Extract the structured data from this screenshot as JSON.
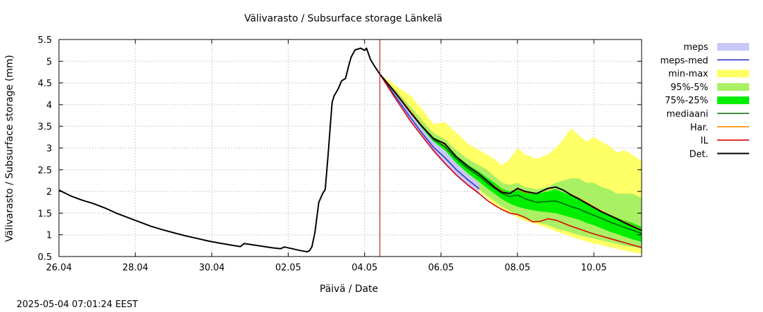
{
  "chart_data": {
    "type": "area",
    "title": "Välivarasto / Subsurface storage  Länkelä",
    "xlabel": "Päivä / Date",
    "ylabel": "Välivarasto / Subsurface storage (mm)",
    "timestamp": "2025-05-04 07:01:24 EEST",
    "xlim": [
      0,
      15.25
    ],
    "ylim": [
      0.5,
      5.5
    ],
    "forecast_start": 8.4,
    "grid": true,
    "x_ticks": [
      {
        "x": 0,
        "label": "26.04"
      },
      {
        "x": 2,
        "label": "28.04"
      },
      {
        "x": 4,
        "label": "30.04"
      },
      {
        "x": 6,
        "label": "02.05"
      },
      {
        "x": 8,
        "label": "04.05"
      },
      {
        "x": 10,
        "label": "06.05"
      },
      {
        "x": 12,
        "label": "08.05"
      },
      {
        "x": 14,
        "label": "10.05"
      }
    ],
    "y_ticks": [
      {
        "y": 0.5,
        "label": "0.5"
      },
      {
        "y": 1,
        "label": "1"
      },
      {
        "y": 1.5,
        "label": "1.5"
      },
      {
        "y": 2,
        "label": "2"
      },
      {
        "y": 2.5,
        "label": "2.5"
      },
      {
        "y": 3,
        "label": "3"
      },
      {
        "y": 3.5,
        "label": "3.5"
      },
      {
        "y": 4,
        "label": "4"
      },
      {
        "y": 4.5,
        "label": "4.5"
      },
      {
        "y": 5,
        "label": "5"
      },
      {
        "y": 5.5,
        "label": "5.5"
      }
    ],
    "legend": [
      {
        "label": "meps",
        "kind": "box",
        "color": "#c8c8fa"
      },
      {
        "label": "meps-med",
        "kind": "line",
        "color": "#3232c8"
      },
      {
        "label": "min-max",
        "kind": "box",
        "color": "#ffff66"
      },
      {
        "label": "95%-5%",
        "kind": "box",
        "color": "#aaf064"
      },
      {
        "label": "75%-25%",
        "kind": "box",
        "color": "#00ee00"
      },
      {
        "label": "mediaani",
        "kind": "line",
        "color": "#006400"
      },
      {
        "label": "Har.",
        "kind": "line",
        "color": "#ff8c00"
      },
      {
        "label": "IL",
        "kind": "line",
        "color": "#e00000"
      },
      {
        "label": "Det.",
        "kind": "line",
        "color": "#000000"
      }
    ],
    "series": [
      {
        "name": "min-max",
        "kind": "band",
        "color": "#ffff66",
        "x": [
          8.4,
          8.8,
          9.2,
          9.5,
          9.8,
          10.1,
          10.4,
          10.7,
          11.0,
          11.2,
          11.4,
          11.6,
          11.8,
          12.0,
          12.2,
          12.5,
          12.8,
          13.0,
          13.2,
          13.4,
          13.6,
          13.8,
          14.0,
          14.2,
          14.4,
          14.6,
          14.8,
          15.0,
          15.25
        ],
        "upper": [
          4.7,
          4.45,
          4.2,
          3.9,
          3.55,
          3.6,
          3.35,
          3.1,
          2.95,
          2.85,
          2.75,
          2.6,
          2.75,
          3.0,
          2.85,
          2.75,
          2.85,
          3.0,
          3.2,
          3.45,
          3.3,
          3.15,
          3.25,
          3.15,
          3.05,
          2.9,
          2.95,
          2.85,
          2.7
        ],
        "lower": [
          4.7,
          4.2,
          3.7,
          3.35,
          3.05,
          2.75,
          2.45,
          2.2,
          2.0,
          1.85,
          1.7,
          1.6,
          1.5,
          1.4,
          1.32,
          1.25,
          1.15,
          1.08,
          1.02,
          0.96,
          0.9,
          0.85,
          0.8,
          0.76,
          0.72,
          0.68,
          0.64,
          0.6,
          0.56
        ]
      },
      {
        "name": "95%-5%",
        "kind": "band",
        "color": "#aaf064",
        "x": [
          8.4,
          8.8,
          9.2,
          9.5,
          9.8,
          10.1,
          10.4,
          10.7,
          11.0,
          11.2,
          11.4,
          11.6,
          11.8,
          12.0,
          12.2,
          12.5,
          12.8,
          13.0,
          13.2,
          13.4,
          13.6,
          13.8,
          14.0,
          14.2,
          14.4,
          14.6,
          14.8,
          15.0,
          15.25
        ],
        "upper": [
          4.7,
          4.35,
          3.95,
          3.65,
          3.35,
          3.2,
          2.95,
          2.75,
          2.6,
          2.5,
          2.35,
          2.2,
          2.15,
          2.2,
          2.1,
          2.05,
          2.1,
          2.2,
          2.25,
          2.3,
          2.3,
          2.2,
          2.2,
          2.1,
          2.05,
          1.95,
          1.95,
          1.95,
          1.85
        ],
        "lower": [
          4.7,
          4.25,
          3.75,
          3.4,
          3.1,
          2.8,
          2.5,
          2.25,
          2.05,
          1.9,
          1.78,
          1.65,
          1.55,
          1.45,
          1.38,
          1.3,
          1.22,
          1.15,
          1.1,
          1.05,
          1.0,
          0.95,
          0.91,
          0.87,
          0.83,
          0.79,
          0.75,
          0.72,
          0.68
        ]
      },
      {
        "name": "75%-25%",
        "kind": "band",
        "color": "#00ee00",
        "x": [
          8.4,
          8.8,
          9.2,
          9.5,
          9.8,
          10.1,
          10.4,
          10.7,
          11.0,
          11.2,
          11.4,
          11.6,
          11.8,
          12.0,
          12.2,
          12.5,
          12.8,
          13.0,
          13.2,
          13.4,
          13.6,
          13.8,
          14.0,
          14.2,
          14.4,
          14.6,
          14.8,
          15.0,
          15.25
        ],
        "upper": [
          4.7,
          4.3,
          3.85,
          3.52,
          3.25,
          3.1,
          2.82,
          2.62,
          2.45,
          2.32,
          2.2,
          2.06,
          2.0,
          2.05,
          1.98,
          1.95,
          2.0,
          2.05,
          1.98,
          1.9,
          1.85,
          1.75,
          1.65,
          1.55,
          1.48,
          1.4,
          1.33,
          1.28,
          1.18
        ],
        "lower": [
          4.7,
          4.25,
          3.78,
          3.45,
          3.15,
          2.95,
          2.65,
          2.42,
          2.22,
          2.08,
          1.95,
          1.82,
          1.72,
          1.65,
          1.6,
          1.55,
          1.52,
          1.5,
          1.45,
          1.4,
          1.35,
          1.28,
          1.22,
          1.15,
          1.08,
          1.02,
          0.96,
          0.9,
          0.84
        ]
      },
      {
        "name": "meps",
        "kind": "band",
        "color": "#c8c8fa",
        "x": [
          8.4,
          8.8,
          9.2,
          9.5,
          9.8,
          10.1,
          10.4,
          10.7,
          11.0
        ],
        "upper": [
          4.7,
          4.25,
          3.8,
          3.45,
          3.15,
          2.95,
          2.65,
          2.4,
          2.2
        ],
        "lower": [
          4.7,
          4.15,
          3.6,
          3.25,
          2.9,
          2.62,
          2.35,
          2.12,
          1.92
        ]
      },
      {
        "name": "meps-med",
        "kind": "line",
        "color": "#3232c8",
        "x": [
          8.4,
          8.8,
          9.2,
          9.5,
          9.8,
          10.1,
          10.4,
          10.7,
          11.0
        ],
        "y": [
          4.7,
          4.2,
          3.7,
          3.35,
          3.02,
          2.78,
          2.5,
          2.27,
          2.06
        ]
      },
      {
        "name": "mediaani",
        "kind": "line",
        "color": "#006400",
        "x": [
          8.4,
          8.8,
          9.2,
          9.5,
          9.8,
          10.1,
          10.4,
          10.7,
          11.0,
          11.2,
          11.4,
          11.6,
          11.8,
          12.0,
          12.2,
          12.5,
          12.8,
          13.0,
          13.2,
          13.4,
          13.6,
          13.8,
          14.0,
          14.2,
          14.4,
          14.6,
          14.8,
          15.0,
          15.25
        ],
        "y": [
          4.7,
          4.28,
          3.82,
          3.5,
          3.2,
          3.03,
          2.75,
          2.53,
          2.35,
          2.2,
          2.07,
          1.95,
          1.88,
          1.92,
          1.83,
          1.75,
          1.77,
          1.78,
          1.72,
          1.65,
          1.6,
          1.52,
          1.45,
          1.38,
          1.3,
          1.24,
          1.17,
          1.11,
          1.03
        ]
      },
      {
        "name": "Har.",
        "kind": "line",
        "color": "#ff8c00",
        "x": [
          8.4,
          8.8,
          9.2,
          9.5,
          9.8,
          10.1,
          10.4,
          10.7,
          11.0,
          11.2,
          11.4,
          11.6,
          11.8,
          12.0,
          12.2,
          12.5,
          12.8,
          13.0,
          13.2,
          13.4,
          13.6,
          13.8,
          14.0,
          14.2,
          14.4,
          14.6,
          14.8,
          15.0,
          15.25
        ],
        "y": [
          4.7,
          4.3,
          3.85,
          3.52,
          3.22,
          3.08,
          2.8,
          2.58,
          2.4,
          2.25,
          2.12,
          2.0,
          1.95,
          2.05,
          1.98,
          1.95,
          2.06,
          2.1,
          2.02,
          1.93,
          1.85,
          1.75,
          1.65,
          1.55,
          1.46,
          1.38,
          1.3,
          1.22,
          1.12
        ]
      },
      {
        "name": "IL",
        "kind": "line",
        "color": "#e00000",
        "x": [
          8.4,
          8.8,
          9.2,
          9.5,
          9.8,
          10.1,
          10.4,
          10.7,
          11.0,
          11.2,
          11.4,
          11.6,
          11.8,
          12.0,
          12.2,
          12.4,
          12.6,
          12.8,
          13.0,
          13.2,
          13.4,
          13.6,
          13.8,
          14.0,
          14.2,
          14.4,
          14.6,
          14.8,
          15.0,
          15.25
        ],
        "y": [
          4.7,
          4.15,
          3.62,
          3.28,
          2.95,
          2.65,
          2.38,
          2.15,
          1.95,
          1.8,
          1.68,
          1.58,
          1.5,
          1.47,
          1.4,
          1.3,
          1.31,
          1.37,
          1.34,
          1.27,
          1.2,
          1.14,
          1.08,
          1.02,
          0.97,
          0.92,
          0.87,
          0.82,
          0.77,
          0.71
        ]
      },
      {
        "name": "Det.",
        "kind": "line",
        "color": "#000000",
        "x": [
          0,
          0.3,
          0.6,
          0.9,
          1.2,
          1.5,
          1.8,
          2.1,
          2.4,
          2.7,
          3.0,
          3.3,
          3.6,
          3.9,
          4.2,
          4.4,
          4.6,
          4.75,
          4.85,
          5.0,
          5.3,
          5.6,
          5.8,
          5.9,
          6.1,
          6.3,
          6.5,
          6.55,
          6.62,
          6.7,
          6.8,
          6.9,
          6.97,
          7.05,
          7.1,
          7.15,
          7.2,
          7.3,
          7.4,
          7.5,
          7.6,
          7.65,
          7.75,
          7.9,
          8.0,
          8.05,
          8.15,
          8.25,
          8.4,
          8.8,
          9.2,
          9.5,
          9.8,
          10.1,
          10.4,
          10.7,
          11.0,
          11.2,
          11.4,
          11.6,
          11.8,
          12.0,
          12.2,
          12.5,
          12.8,
          13.0,
          13.2,
          13.4,
          13.6,
          13.8,
          14.0,
          14.2,
          14.4,
          14.6,
          14.8,
          15.0,
          15.25
        ],
        "y": [
          2.03,
          1.9,
          1.8,
          1.72,
          1.62,
          1.5,
          1.4,
          1.3,
          1.2,
          1.12,
          1.05,
          0.98,
          0.92,
          0.86,
          0.81,
          0.78,
          0.75,
          0.73,
          0.8,
          0.78,
          0.74,
          0.7,
          0.68,
          0.72,
          0.68,
          0.64,
          0.61,
          0.63,
          0.72,
          1.05,
          1.75,
          1.95,
          2.05,
          2.9,
          3.5,
          4.05,
          4.2,
          4.35,
          4.55,
          4.6,
          4.95,
          5.1,
          5.26,
          5.3,
          5.25,
          5.3,
          5.05,
          4.9,
          4.7,
          4.28,
          3.82,
          3.5,
          3.22,
          3.1,
          2.8,
          2.58,
          2.4,
          2.25,
          2.1,
          1.98,
          1.95,
          2.07,
          2.0,
          1.95,
          2.07,
          2.1,
          2.03,
          1.92,
          1.83,
          1.73,
          1.63,
          1.53,
          1.45,
          1.37,
          1.28,
          1.2,
          1.1
        ]
      }
    ]
  }
}
